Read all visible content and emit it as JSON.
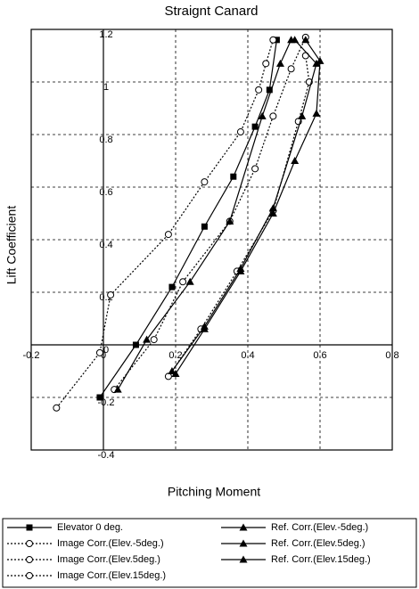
{
  "chart_data": {
    "type": "line",
    "title": "Straignt Canard",
    "xlabel": "Pitching Moment",
    "ylabel": "Lift Coefficient",
    "xlim": [
      -0.2,
      0.8
    ],
    "xticks": [
      -0.2,
      0,
      0.2,
      0.4,
      0.6,
      0.8
    ],
    "ylim": [
      -0.4,
      1.2
    ],
    "yticks": [
      -0.4,
      -0.2,
      0,
      0.2,
      0.4,
      0.6,
      0.8,
      1,
      1.2
    ],
    "grid": true,
    "legend": "bottom",
    "series": [
      {
        "name": "Elevator 0 deg.",
        "color": "#000000",
        "style": "solid",
        "marker": "square",
        "x": [
          -0.01,
          0.09,
          0.19,
          0.28,
          0.36,
          0.42,
          0.46,
          0.48
        ],
        "values": [
          -0.2,
          0,
          0.22,
          0.45,
          0.64,
          0.83,
          0.97,
          1.16
        ]
      },
      {
        "name": "Image Corr.(Elev.-5deg.)",
        "color": "#000000",
        "style": "dotted",
        "marker": "circle",
        "x": [
          -0.13,
          -0.01,
          0.02,
          0.18,
          0.28,
          0.38,
          0.43,
          0.45,
          0.47
        ],
        "values": [
          -0.24,
          -0.03,
          0.19,
          0.42,
          0.62,
          0.81,
          0.97,
          1.07,
          1.16
        ]
      },
      {
        "name": "Image Corr.(Elev.5deg.)",
        "color": "#000000",
        "style": "dotted",
        "marker": "circle",
        "x": [
          0.03,
          0.14,
          0.22,
          0.35,
          0.42,
          0.47,
          0.52,
          0.56
        ],
        "values": [
          -0.17,
          0.02,
          0.24,
          0.47,
          0.67,
          0.87,
          1.05,
          1.17
        ]
      },
      {
        "name": "Image Corr.(Elev.15deg.)",
        "color": "#000000",
        "style": "dotted",
        "marker": "circle",
        "x": [
          0.18,
          0.27,
          0.37,
          0.47,
          0.54,
          0.57,
          0.56
        ],
        "values": [
          -0.12,
          0.06,
          0.28,
          0.51,
          0.85,
          1.0,
          1.1
        ]
      },
      {
        "name": "Ref. Corr.(Elev.-5deg.)",
        "color": "#000000",
        "style": "solid",
        "marker": "triangle",
        "x": [
          0.04,
          0.12,
          0.24,
          0.35,
          0.44,
          0.49,
          0.52
        ],
        "values": [
          -0.17,
          0.02,
          0.24,
          0.47,
          0.87,
          1.07,
          1.16
        ]
      },
      {
        "name": "Ref. Corr.(Elev.5deg.)",
        "color": "#000000",
        "style": "solid",
        "marker": "triangle",
        "x": [
          0.19,
          0.28,
          0.38,
          0.47,
          0.55,
          0.59,
          0.53
        ],
        "values": [
          -0.1,
          0.07,
          0.29,
          0.52,
          0.87,
          1.07,
          1.16
        ]
      },
      {
        "name": "Ref. Corr.(Elev.15deg.)",
        "color": "#000000",
        "style": "solid",
        "marker": "triangle",
        "x": [
          0.2,
          0.28,
          0.38,
          0.47,
          0.53,
          0.59,
          0.6,
          0.56
        ],
        "values": [
          -0.11,
          0.06,
          0.28,
          0.5,
          0.7,
          0.88,
          1.08,
          1.16
        ]
      }
    ]
  }
}
